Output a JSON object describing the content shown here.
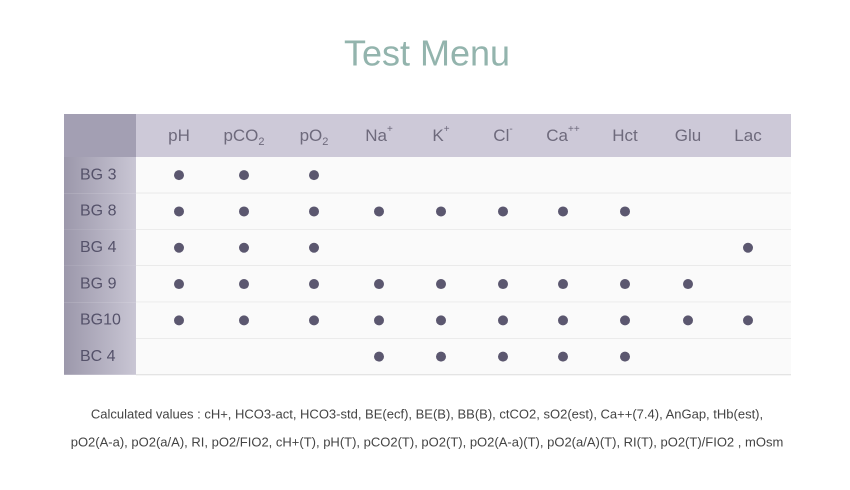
{
  "title": "Test Menu",
  "table": {
    "columns": [
      {
        "text": "pH"
      },
      {
        "text": "pCO",
        "sub": "2"
      },
      {
        "text": "pO",
        "sub": "2"
      },
      {
        "text": "Na",
        "sup": "+"
      },
      {
        "text": "K",
        "sup": "+"
      },
      {
        "text": "Cl",
        "sup": "-"
      },
      {
        "text": "Ca",
        "sup": "++"
      },
      {
        "text": "Hct"
      },
      {
        "text": "Glu"
      },
      {
        "text": "Lac"
      }
    ],
    "rows": [
      {
        "label": "BG 3",
        "cells": [
          true,
          true,
          true,
          false,
          false,
          false,
          false,
          false,
          false,
          false
        ]
      },
      {
        "label": "BG 8",
        "cells": [
          true,
          true,
          true,
          true,
          true,
          true,
          true,
          true,
          false,
          false
        ]
      },
      {
        "label": "BG 4",
        "cells": [
          true,
          true,
          true,
          false,
          false,
          false,
          false,
          false,
          false,
          true
        ]
      },
      {
        "label": "BG 9",
        "cells": [
          true,
          true,
          true,
          true,
          true,
          true,
          true,
          true,
          true,
          false
        ]
      },
      {
        "label": "BG10",
        "cells": [
          true,
          true,
          true,
          true,
          true,
          true,
          true,
          true,
          true,
          true
        ]
      },
      {
        "label": "BC 4",
        "cells": [
          false,
          false,
          false,
          true,
          true,
          true,
          true,
          true,
          false,
          false
        ]
      }
    ]
  },
  "footer": {
    "lines": [
      "Calculated values : cH+, HCO3-act, HCO3-std, BE(ecf), BE(B), BB(B), ctCO2, sO2(est), Ca++(7.4), AnGap, tHb(est),",
      "pO2(A-a), pO2(a/A), RI, pO2/FIO2, cH+(T), pH(T), pCO2(T), pO2(T), pO2(A-a)(T), pO2(a/A)(T), RI(T), pO2(T)/FIO2 , mOsm"
    ]
  }
}
